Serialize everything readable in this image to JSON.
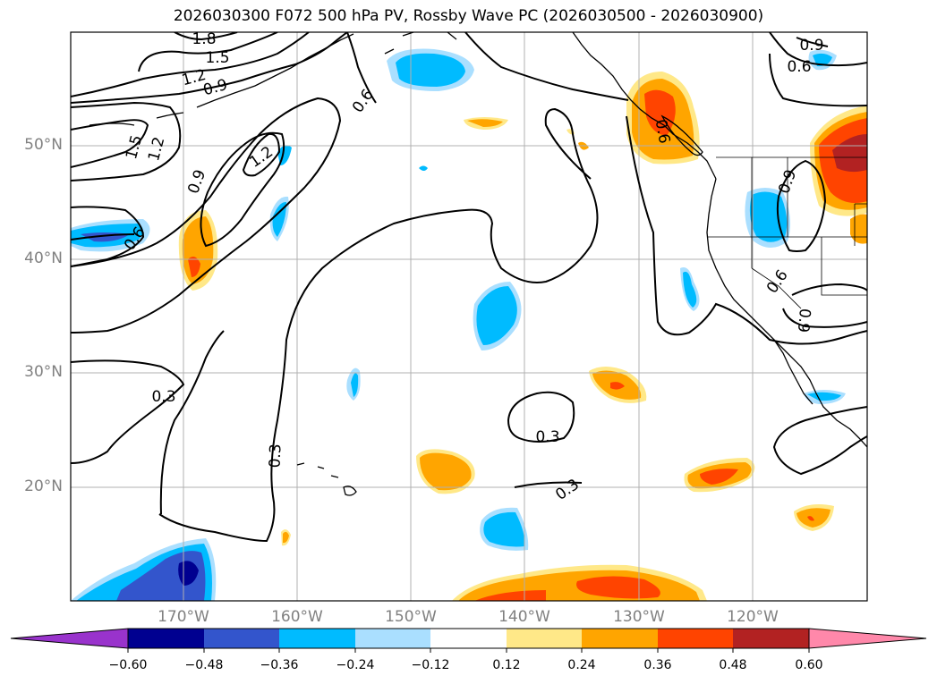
{
  "title": "2026030300 F072 500 hPa PV, Rossby Wave PC (2026030500 - 2026030900)",
  "lat_labels": [
    "50°N",
    "40°N",
    "30°N",
    "20°N"
  ],
  "lon_labels": [
    "170°W",
    "160°W",
    "150°W",
    "140°W",
    "130°W",
    "120°W"
  ],
  "contour_labels": [
    "1.8",
    "1.5",
    "1.2",
    "0.9",
    "0.6",
    "1.5",
    "1.2",
    "1.2",
    "0.9",
    "0.6",
    "0.3",
    "0.3",
    "0.3",
    "0.3",
    "0.6",
    "0.9",
    "0.9",
    "0.6",
    "0.6",
    "0.9"
  ],
  "colorbar": {
    "ticks": [
      "−0.60",
      "−0.48",
      "−0.36",
      "−0.24",
      "−0.12",
      "0.12",
      "0.24",
      "0.36",
      "0.48",
      "0.60"
    ],
    "colors": [
      "#9933cc",
      "#000090",
      "#3355cc",
      "#00bbff",
      "#aadfff",
      "#ffffff",
      "#ffe888",
      "#ffa500",
      "#ff4400",
      "#b22222",
      "#ff88aa"
    ]
  }
}
